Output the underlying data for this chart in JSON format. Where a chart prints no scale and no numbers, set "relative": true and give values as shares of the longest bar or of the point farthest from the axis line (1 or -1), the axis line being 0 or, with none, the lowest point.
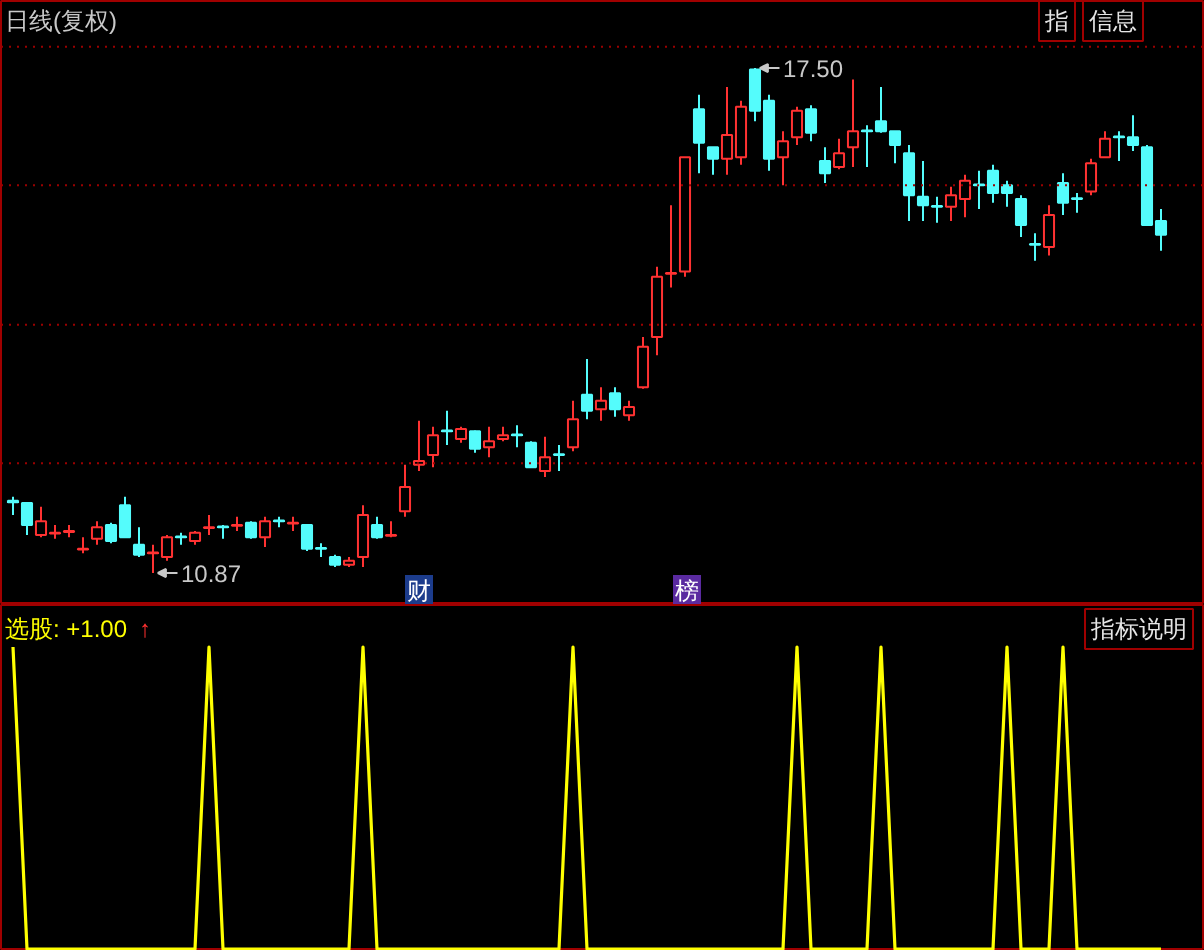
{
  "chart_data": [
    {
      "type": "candlestick",
      "title": "日线(复权)",
      "categories": [
        null,
        null,
        null,
        null,
        null,
        null,
        null,
        null,
        null,
        null,
        null,
        null,
        null,
        null,
        null,
        null,
        null,
        null,
        null,
        null,
        null,
        null,
        null,
        null,
        null,
        null,
        null,
        null,
        null,
        null,
        null,
        null,
        null,
        null,
        null,
        null,
        null,
        null,
        null,
        null,
        null,
        null,
        null,
        null,
        null,
        null,
        null,
        null,
        null,
        null,
        null,
        null,
        null,
        null,
        null,
        null,
        null,
        null,
        null,
        null,
        null,
        null,
        null,
        null,
        null,
        null,
        null,
        null,
        null,
        null,
        null,
        null,
        null,
        null,
        null,
        null,
        null,
        null,
        null,
        null,
        null,
        null,
        null
      ],
      "ohlc": [
        [
          11.82,
          11.87,
          11.63,
          11.8
        ],
        [
          11.79,
          11.8,
          11.37,
          11.5
        ],
        [
          11.37,
          11.74,
          11.34,
          11.55
        ],
        [
          11.39,
          11.5,
          11.32,
          11.4
        ],
        [
          11.41,
          11.5,
          11.34,
          11.42
        ],
        [
          11.18,
          11.34,
          11.13,
          11.19
        ],
        [
          11.32,
          11.55,
          11.24,
          11.47
        ],
        [
          11.5,
          11.53,
          11.26,
          11.29
        ],
        [
          11.76,
          11.87,
          11.33,
          11.34
        ],
        [
          11.24,
          11.47,
          11.08,
          11.11
        ],
        [
          11.13,
          11.24,
          10.87,
          11.14
        ],
        [
          11.08,
          11.37,
          11.03,
          11.34
        ],
        [
          11.35,
          11.4,
          11.24,
          11.34
        ],
        [
          11.29,
          11.42,
          11.24,
          11.4
        ],
        [
          11.46,
          11.63,
          11.37,
          11.47
        ],
        [
          11.48,
          11.5,
          11.32,
          11.47
        ],
        [
          11.49,
          11.61,
          11.42,
          11.5
        ],
        [
          11.53,
          11.55,
          11.32,
          11.34
        ],
        [
          11.34,
          11.61,
          11.21,
          11.55
        ],
        [
          11.56,
          11.61,
          11.47,
          11.55
        ],
        [
          11.52,
          11.61,
          11.42,
          11.53
        ],
        [
          11.5,
          11.51,
          11.16,
          11.19
        ],
        [
          11.2,
          11.26,
          11.08,
          11.19
        ],
        [
          11.08,
          11.11,
          10.95,
          10.98
        ],
        [
          10.98,
          11.08,
          10.95,
          11.03
        ],
        [
          11.08,
          11.76,
          10.95,
          11.63
        ],
        [
          11.5,
          11.61,
          11.32,
          11.34
        ],
        [
          11.36,
          11.55,
          11.34,
          11.37
        ],
        [
          11.68,
          12.29,
          11.61,
          12.0
        ],
        [
          12.29,
          12.87,
          12.21,
          12.34
        ],
        [
          12.42,
          12.79,
          12.26,
          12.68
        ],
        [
          12.74,
          13.0,
          12.55,
          12.73
        ],
        [
          12.63,
          12.79,
          12.58,
          12.76
        ],
        [
          12.73,
          12.74,
          12.45,
          12.5
        ],
        [
          12.52,
          12.79,
          12.39,
          12.6
        ],
        [
          12.63,
          12.79,
          12.6,
          12.68
        ],
        [
          12.69,
          12.81,
          12.52,
          12.68
        ],
        [
          12.58,
          12.6,
          12.25,
          12.26
        ],
        [
          12.21,
          12.66,
          12.13,
          12.39
        ],
        [
          12.43,
          12.55,
          12.21,
          12.42
        ],
        [
          12.52,
          13.13,
          12.47,
          12.89
        ],
        [
          13.21,
          13.68,
          12.89,
          13.0
        ],
        [
          13.02,
          13.31,
          12.87,
          13.13
        ],
        [
          13.23,
          13.31,
          12.92,
          13.02
        ],
        [
          12.94,
          13.13,
          12.87,
          13.05
        ],
        [
          13.31,
          13.97,
          13.29,
          13.84
        ],
        [
          13.97,
          14.89,
          13.73,
          14.76
        ],
        [
          14.8,
          15.7,
          14.62,
          14.81
        ],
        [
          14.83,
          16.33,
          14.76,
          16.33
        ],
        [
          16.96,
          17.15,
          16.12,
          16.52
        ],
        [
          16.46,
          16.46,
          16.1,
          16.31
        ],
        [
          16.31,
          17.25,
          16.1,
          16.62
        ],
        [
          16.33,
          17.07,
          16.23,
          16.99
        ],
        [
          17.48,
          17.5,
          16.8,
          16.94
        ],
        [
          17.07,
          17.15,
          16.15,
          16.31
        ],
        [
          16.33,
          16.67,
          15.96,
          16.54
        ],
        [
          16.59,
          16.99,
          16.49,
          16.94
        ],
        [
          16.96,
          17.01,
          16.54,
          16.65
        ],
        [
          16.28,
          16.46,
          15.99,
          16.12
        ],
        [
          16.2,
          16.57,
          16.17,
          16.38
        ],
        [
          16.46,
          17.35,
          16.2,
          16.67
        ],
        [
          16.68,
          16.75,
          16.2,
          16.67
        ],
        [
          16.8,
          17.25,
          16.65,
          16.67
        ],
        [
          16.67,
          16.67,
          16.25,
          16.49
        ],
        [
          16.38,
          16.49,
          15.49,
          15.83
        ],
        [
          15.81,
          16.28,
          15.49,
          15.7
        ],
        [
          15.69,
          15.81,
          15.47,
          15.68
        ],
        [
          15.68,
          15.94,
          15.49,
          15.83
        ],
        [
          15.78,
          16.1,
          15.54,
          16.02
        ],
        [
          15.97,
          16.15,
          15.65,
          15.96
        ],
        [
          16.15,
          16.23,
          15.73,
          15.86
        ],
        [
          15.96,
          16.02,
          15.68,
          15.86
        ],
        [
          15.78,
          15.83,
          15.28,
          15.44
        ],
        [
          15.19,
          15.33,
          14.97,
          15.18
        ],
        [
          15.15,
          15.7,
          15.04,
          15.57
        ],
        [
          15.99,
          16.12,
          15.57,
          15.73
        ],
        [
          15.79,
          15.86,
          15.6,
          15.78
        ],
        [
          15.88,
          16.31,
          15.83,
          16.25
        ],
        [
          16.33,
          16.67,
          16.33,
          16.57
        ],
        [
          16.6,
          16.67,
          16.28,
          16.59
        ],
        [
          16.59,
          16.88,
          16.41,
          16.49
        ],
        [
          16.46,
          16.49,
          15.44,
          15.44
        ],
        [
          15.49,
          15.65,
          15.1,
          15.31
        ]
      ],
      "colors": [
        "#54fcfc",
        "#54fcfc",
        "#ff3232",
        "#ff3232",
        "#ff3232",
        "#ff3232",
        "#ff3232",
        "#54fcfc",
        "#54fcfc",
        "#54fcfc",
        "#ff3232",
        "#ff3232",
        "#54fcfc",
        "#ff3232",
        "#ff3232",
        "#54fcfc",
        "#ff3232",
        "#54fcfc",
        "#ff3232",
        "#54fcfc",
        "#ff3232",
        "#54fcfc",
        "#54fcfc",
        "#54fcfc",
        "#ff3232",
        "#ff3232",
        "#54fcfc",
        "#ff3232",
        "#ff3232",
        "#ff3232",
        "#ff3232",
        "#54fcfc",
        "#ff3232",
        "#54fcfc",
        "#ff3232",
        "#ff3232",
        "#54fcfc",
        "#54fcfc",
        "#ff3232",
        "#54fcfc",
        "#ff3232",
        "#54fcfc",
        "#ff3232",
        "#54fcfc",
        "#ff3232",
        "#ff3232",
        "#ff3232",
        "#ff3232",
        "#ff3232",
        "#54fcfc",
        "#54fcfc",
        "#ff3232",
        "#ff3232",
        "#54fcfc",
        "#54fcfc",
        "#ff3232",
        "#ff3232",
        "#54fcfc",
        "#54fcfc",
        "#ff3232",
        "#ff3232",
        "#54fcfc",
        "#54fcfc",
        "#54fcfc",
        "#54fcfc",
        "#54fcfc",
        "#54fcfc",
        "#ff3232",
        "#ff3232",
        "#54fcfc",
        "#54fcfc",
        "#54fcfc",
        "#54fcfc",
        "#54fcfc",
        "#ff3232",
        "#54fcfc",
        "#54fcfc",
        "#ff3232",
        "#ff3232",
        "#54fcfc",
        "#54fcfc",
        "#54fcfc",
        "#54fcfc"
      ],
      "ylim": [
        10.45,
        18.38
      ],
      "yticks": [
        {
          "value": 12.31,
          "label": null
        },
        {
          "value": 14.13,
          "label": null
        },
        {
          "value": 15.96,
          "label": null
        },
        {
          "value": 17.78,
          "label": null
        }
      ],
      "grid": "y",
      "tick_labels": false,
      "annotations": [
        "17.50",
        "10.87",
        "财",
        "榜",
        "指",
        "信息"
      ]
    },
    {
      "type": "line",
      "title": "选股: +1.00",
      "relative": true,
      "categories": [
        null,
        null,
        null,
        null,
        null,
        null,
        null,
        null,
        null,
        null,
        null,
        null,
        null,
        null,
        null,
        null,
        null,
        null,
        null,
        null,
        null,
        null,
        null,
        null,
        null,
        null,
        null,
        null,
        null,
        null,
        null,
        null,
        null,
        null,
        null,
        null,
        null,
        null,
        null,
        null,
        null,
        null,
        null,
        null,
        null,
        null,
        null,
        null,
        null,
        null,
        null,
        null,
        null,
        null,
        null,
        null,
        null,
        null,
        null,
        null,
        null,
        null,
        null,
        null,
        null,
        null,
        null,
        null,
        null,
        null,
        null,
        null,
        null,
        null,
        null,
        null,
        null,
        null,
        null,
        null,
        null,
        null,
        null
      ],
      "series": [
        {
          "color": "#ffff00",
          "values": [
            1,
            0,
            0,
            0,
            0,
            0,
            0,
            0,
            0,
            0,
            0,
            0,
            0,
            0,
            1,
            0,
            0,
            0,
            0,
            0,
            0,
            0,
            0,
            0,
            0,
            1,
            0,
            0,
            0,
            0,
            0,
            0,
            0,
            0,
            0,
            0,
            0,
            0,
            0,
            0,
            1,
            0,
            0,
            0,
            0,
            0,
            0,
            0,
            0,
            0,
            0,
            0,
            0,
            0,
            0,
            0,
            1,
            0,
            0,
            0,
            0,
            0,
            1,
            0,
            0,
            0,
            0,
            0,
            0,
            0,
            0,
            1,
            0,
            0,
            0,
            1,
            0,
            0,
            0,
            0,
            0,
            0,
            0
          ]
        }
      ],
      "tick_labels": false,
      "annotations": [
        "↑",
        "指标说明"
      ]
    }
  ]
}
